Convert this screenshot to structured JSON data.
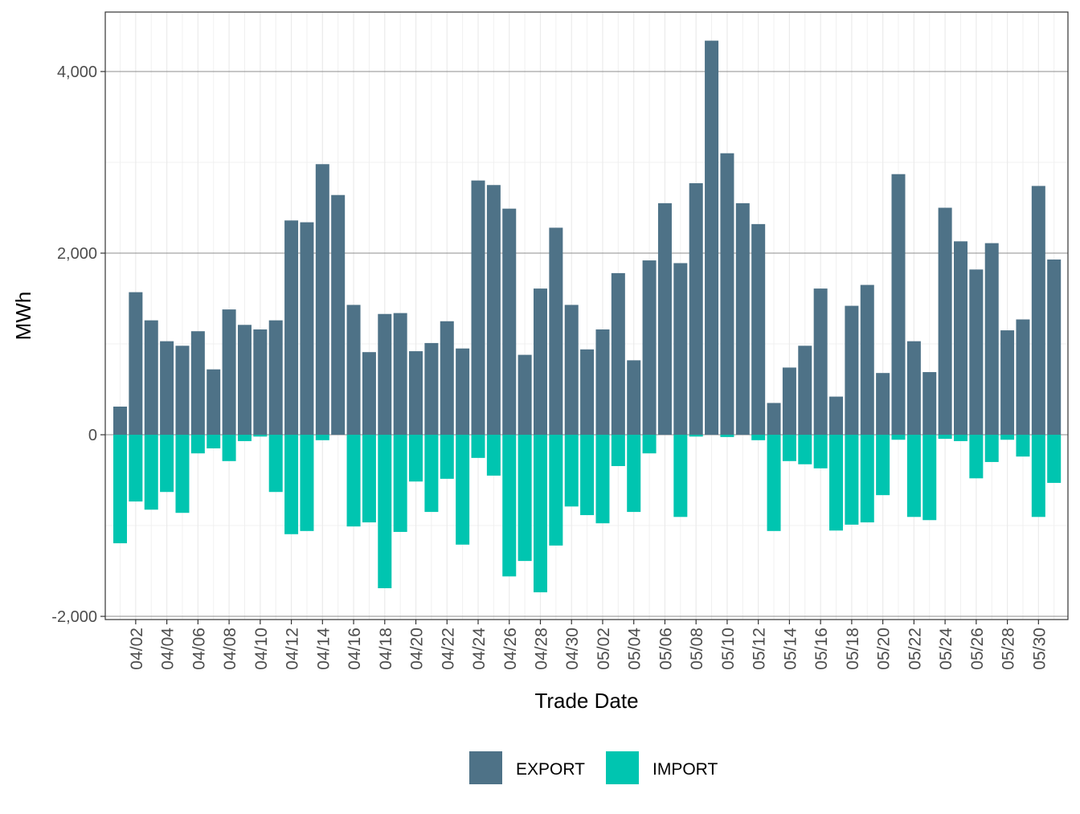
{
  "chart_data": {
    "type": "bar",
    "x_label": "Trade Date",
    "y_label": "MWh",
    "categories": [
      null,
      "04/02",
      null,
      "04/04",
      null,
      "04/06",
      null,
      "04/08",
      null,
      "04/10",
      null,
      "04/12",
      null,
      "04/14",
      null,
      "04/16",
      null,
      "04/18",
      null,
      "04/20",
      null,
      "04/22",
      null,
      "04/24",
      null,
      "04/26",
      null,
      "04/28",
      null,
      "04/30",
      null,
      "05/02",
      null,
      "05/04",
      null,
      "05/06",
      null,
      "05/08",
      null,
      "05/10",
      null,
      "05/12",
      null,
      "05/14",
      null,
      "05/16",
      null,
      "05/18",
      null,
      "05/20",
      null,
      "05/22",
      null,
      "05/24",
      null,
      "05/26",
      null,
      "05/28",
      null,
      "05/30",
      null
    ],
    "series": [
      {
        "name": "EXPORT",
        "color": "#4e7287",
        "values": [
          310,
          1570,
          1260,
          1030,
          980,
          1140,
          720,
          1380,
          1210,
          1160,
          1260,
          2360,
          2340,
          2980,
          2640,
          1430,
          910,
          1330,
          1340,
          920,
          1010,
          1250,
          950,
          2800,
          2750,
          2490,
          880,
          1610,
          2280,
          1430,
          940,
          1160,
          1780,
          820,
          1920,
          2550,
          1890,
          2770,
          4340,
          3100,
          2550,
          2320,
          350,
          740,
          980,
          1610,
          420,
          1420,
          1650,
          680,
          2870,
          1030,
          690,
          2500,
          2130,
          1820,
          2110,
          1150,
          1270,
          2740,
          1930
        ]
      },
      {
        "name": "IMPORT",
        "color": "#00c5b0",
        "values": [
          -1195,
          -735,
          -825,
          -630,
          -860,
          -205,
          -150,
          -290,
          -70,
          -20,
          -630,
          -1095,
          -1060,
          -60,
          0,
          -1010,
          -965,
          -1690,
          -1070,
          -515,
          -850,
          -485,
          -1210,
          -255,
          -450,
          -1560,
          -1390,
          -1735,
          -1220,
          -790,
          -885,
          -975,
          -345,
          -850,
          -205,
          0,
          -905,
          -20,
          0,
          -25,
          0,
          -60,
          -1060,
          -290,
          -325,
          -370,
          -1055,
          -990,
          -965,
          -665,
          -55,
          -905,
          -940,
          -45,
          -70,
          -480,
          -300,
          -55,
          -240,
          -905,
          -530
        ]
      }
    ],
    "ylim": [
      -2035,
      4655
    ],
    "yticks": [
      {
        "value": -2000,
        "label": "-2,000"
      },
      0,
      {
        "value": 2000,
        "label": "2,000"
      },
      {
        "value": 4000,
        "label": "4,000"
      }
    ],
    "grid": true,
    "legend": "bottom"
  }
}
